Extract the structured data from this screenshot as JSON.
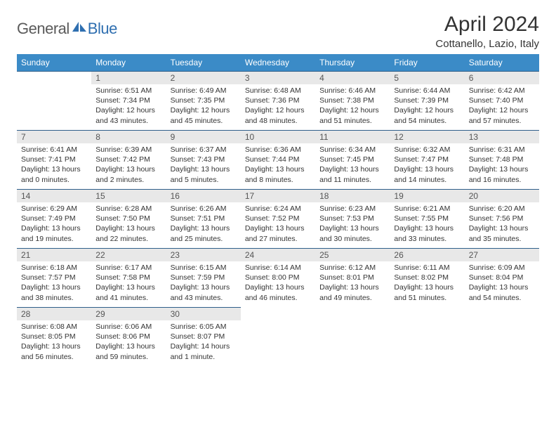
{
  "logo": {
    "text1": "General",
    "text2": "Blue",
    "icon_color": "#2f6fb0"
  },
  "title": "April 2024",
  "location": "Cottanello, Lazio, Italy",
  "colors": {
    "header_bg": "#3b8bc7",
    "header_text": "#ffffff",
    "row_border": "#2f5f8a",
    "daynum_bg": "#e8e8e8",
    "daynum_text": "#555555",
    "body_text": "#333333",
    "page_bg": "#ffffff"
  },
  "fonts": {
    "title_size": 30,
    "location_size": 15,
    "th_size": 12,
    "daynum_size": 12,
    "body_size": 10.5
  },
  "weekdays": [
    "Sunday",
    "Monday",
    "Tuesday",
    "Wednesday",
    "Thursday",
    "Friday",
    "Saturday"
  ],
  "first_weekday_offset": 1,
  "days": [
    {
      "n": 1,
      "sunrise": "6:51 AM",
      "sunset": "7:34 PM",
      "daylight": "12 hours and 43 minutes."
    },
    {
      "n": 2,
      "sunrise": "6:49 AM",
      "sunset": "7:35 PM",
      "daylight": "12 hours and 45 minutes."
    },
    {
      "n": 3,
      "sunrise": "6:48 AM",
      "sunset": "7:36 PM",
      "daylight": "12 hours and 48 minutes."
    },
    {
      "n": 4,
      "sunrise": "6:46 AM",
      "sunset": "7:38 PM",
      "daylight": "12 hours and 51 minutes."
    },
    {
      "n": 5,
      "sunrise": "6:44 AM",
      "sunset": "7:39 PM",
      "daylight": "12 hours and 54 minutes."
    },
    {
      "n": 6,
      "sunrise": "6:42 AM",
      "sunset": "7:40 PM",
      "daylight": "12 hours and 57 minutes."
    },
    {
      "n": 7,
      "sunrise": "6:41 AM",
      "sunset": "7:41 PM",
      "daylight": "13 hours and 0 minutes."
    },
    {
      "n": 8,
      "sunrise": "6:39 AM",
      "sunset": "7:42 PM",
      "daylight": "13 hours and 2 minutes."
    },
    {
      "n": 9,
      "sunrise": "6:37 AM",
      "sunset": "7:43 PM",
      "daylight": "13 hours and 5 minutes."
    },
    {
      "n": 10,
      "sunrise": "6:36 AM",
      "sunset": "7:44 PM",
      "daylight": "13 hours and 8 minutes."
    },
    {
      "n": 11,
      "sunrise": "6:34 AM",
      "sunset": "7:45 PM",
      "daylight": "13 hours and 11 minutes."
    },
    {
      "n": 12,
      "sunrise": "6:32 AM",
      "sunset": "7:47 PM",
      "daylight": "13 hours and 14 minutes."
    },
    {
      "n": 13,
      "sunrise": "6:31 AM",
      "sunset": "7:48 PM",
      "daylight": "13 hours and 16 minutes."
    },
    {
      "n": 14,
      "sunrise": "6:29 AM",
      "sunset": "7:49 PM",
      "daylight": "13 hours and 19 minutes."
    },
    {
      "n": 15,
      "sunrise": "6:28 AM",
      "sunset": "7:50 PM",
      "daylight": "13 hours and 22 minutes."
    },
    {
      "n": 16,
      "sunrise": "6:26 AM",
      "sunset": "7:51 PM",
      "daylight": "13 hours and 25 minutes."
    },
    {
      "n": 17,
      "sunrise": "6:24 AM",
      "sunset": "7:52 PM",
      "daylight": "13 hours and 27 minutes."
    },
    {
      "n": 18,
      "sunrise": "6:23 AM",
      "sunset": "7:53 PM",
      "daylight": "13 hours and 30 minutes."
    },
    {
      "n": 19,
      "sunrise": "6:21 AM",
      "sunset": "7:55 PM",
      "daylight": "13 hours and 33 minutes."
    },
    {
      "n": 20,
      "sunrise": "6:20 AM",
      "sunset": "7:56 PM",
      "daylight": "13 hours and 35 minutes."
    },
    {
      "n": 21,
      "sunrise": "6:18 AM",
      "sunset": "7:57 PM",
      "daylight": "13 hours and 38 minutes."
    },
    {
      "n": 22,
      "sunrise": "6:17 AM",
      "sunset": "7:58 PM",
      "daylight": "13 hours and 41 minutes."
    },
    {
      "n": 23,
      "sunrise": "6:15 AM",
      "sunset": "7:59 PM",
      "daylight": "13 hours and 43 minutes."
    },
    {
      "n": 24,
      "sunrise": "6:14 AM",
      "sunset": "8:00 PM",
      "daylight": "13 hours and 46 minutes."
    },
    {
      "n": 25,
      "sunrise": "6:12 AM",
      "sunset": "8:01 PM",
      "daylight": "13 hours and 49 minutes."
    },
    {
      "n": 26,
      "sunrise": "6:11 AM",
      "sunset": "8:02 PM",
      "daylight": "13 hours and 51 minutes."
    },
    {
      "n": 27,
      "sunrise": "6:09 AM",
      "sunset": "8:04 PM",
      "daylight": "13 hours and 54 minutes."
    },
    {
      "n": 28,
      "sunrise": "6:08 AM",
      "sunset": "8:05 PM",
      "daylight": "13 hours and 56 minutes."
    },
    {
      "n": 29,
      "sunrise": "6:06 AM",
      "sunset": "8:06 PM",
      "daylight": "13 hours and 59 minutes."
    },
    {
      "n": 30,
      "sunrise": "6:05 AM",
      "sunset": "8:07 PM",
      "daylight": "14 hours and 1 minute."
    }
  ],
  "labels": {
    "sunrise": "Sunrise:",
    "sunset": "Sunset:",
    "daylight": "Daylight:"
  }
}
